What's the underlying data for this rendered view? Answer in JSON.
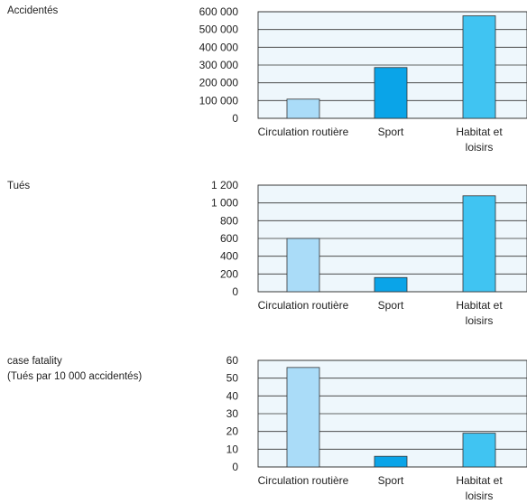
{
  "chart_data": [
    {
      "type": "bar",
      "label_lines": [
        "Accidentés"
      ],
      "categories": [
        [
          "Circulation routière"
        ],
        [
          "Sport"
        ],
        [
          "Habitat et",
          "loisirs"
        ]
      ],
      "values": [
        108000,
        286000,
        577000
      ],
      "yticks": [
        "0",
        "100 000",
        "200 000",
        "300 000",
        "400 000",
        "500 000",
        "600 000"
      ],
      "ylim": [
        0,
        600000
      ],
      "grid": true,
      "colors": [
        "#aadcf8",
        "#0aa4e8",
        "#40c4f2"
      ]
    },
    {
      "type": "bar",
      "label_lines": [
        "Tués"
      ],
      "categories": [
        [
          "Circulation routière"
        ],
        [
          "Sport"
        ],
        [
          "Habitat et",
          "loisirs"
        ]
      ],
      "values": [
        600,
        160,
        1080
      ],
      "yticks": [
        "0",
        "200",
        "400",
        "600",
        "800",
        "1 000",
        "1 200"
      ],
      "ylim": [
        0,
        1200
      ],
      "grid": true,
      "colors": [
        "#aadcf8",
        "#0aa4e8",
        "#40c4f2"
      ]
    },
    {
      "type": "bar",
      "label_lines": [
        "case fatality",
        "(Tués par 10 000 accidentés)"
      ],
      "categories": [
        [
          "Circulation routière"
        ],
        [
          "Sport"
        ],
        [
          "Habitat et",
          "loisirs"
        ]
      ],
      "values": [
        56,
        6,
        19
      ],
      "yticks": [
        "0",
        "10",
        "20",
        "30",
        "40",
        "50",
        "60"
      ],
      "ylim": [
        0,
        60
      ],
      "grid": true,
      "colors": [
        "#aadcf8",
        "#0aa4e8",
        "#40c4f2"
      ]
    }
  ]
}
